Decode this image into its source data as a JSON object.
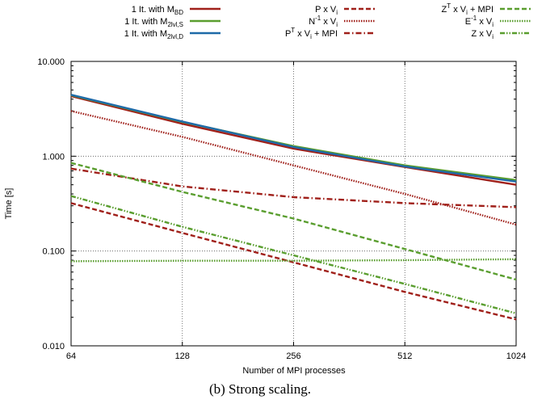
{
  "chart_data": {
    "type": "line",
    "caption": "(b) Strong scaling.",
    "xlabel": "Number of MPI processes",
    "ylabel": "Time [s]",
    "x": [
      64,
      128,
      256,
      512,
      1024
    ],
    "x_tick_labels": [
      "64",
      "128",
      "256",
      "512",
      "1024"
    ],
    "xscale": "log2",
    "yscale": "log10",
    "ylim": [
      0.01,
      10
    ],
    "y_ticks": [
      0.01,
      0.1,
      1,
      10
    ],
    "y_tick_labels": [
      "0.010",
      "0.100",
      "1.000",
      "10.000"
    ],
    "grid": "dotted, at major ticks",
    "legend_position": "top, above plot, three columns",
    "series": [
      {
        "name": "1 It. with M_BD",
        "legend": [
          "1 It. with M",
          "BD",
          ""
        ],
        "color": "#a0201a",
        "dash": "solid",
        "values": [
          4.3,
          2.2,
          1.2,
          0.77,
          0.5
        ]
      },
      {
        "name": "1 It. with M_2lvl,S",
        "legend": [
          "1 It. with M",
          "2lvl,S",
          ""
        ],
        "color": "#5a9e2f",
        "dash": "solid",
        "values": [
          4.4,
          2.3,
          1.28,
          0.8,
          0.56
        ]
      },
      {
        "name": "1 It. with M_2lvl,D",
        "legend": [
          "1 It. with M",
          "2lvl,D",
          ""
        ],
        "color": "#1e6aa8",
        "dash": "solid",
        "values": [
          4.45,
          2.32,
          1.25,
          0.78,
          0.54
        ]
      },
      {
        "name": "P x V_i",
        "legend": [
          "P x V",
          "i",
          ""
        ],
        "color": "#a0201a",
        "dash": "dashed",
        "values": [
          0.32,
          0.155,
          0.076,
          0.037,
          0.019
        ]
      },
      {
        "name": "N^-1 x V_i",
        "legend": [
          "N",
          "",
          "-1",
          " x V",
          "i"
        ],
        "color": "#a0201a",
        "dash": "dotted",
        "values": [
          3.0,
          1.6,
          0.8,
          0.4,
          0.19
        ]
      },
      {
        "name": "P^T x V_i + MPI",
        "legend": [
          "P",
          "",
          "T",
          " x V",
          "i",
          " + MPI"
        ],
        "color": "#a0201a",
        "dash": "dashdot",
        "values": [
          0.74,
          0.48,
          0.37,
          0.32,
          0.29
        ]
      },
      {
        "name": "Z^T x V_i + MPI",
        "legend": [
          "Z",
          "",
          "T",
          " x V",
          "i",
          " + MPI"
        ],
        "color": "#5a9e2f",
        "dash": "dashed",
        "values": [
          0.85,
          0.42,
          0.22,
          0.105,
          0.05
        ]
      },
      {
        "name": "E^-1 x V_i",
        "legend": [
          "E",
          "",
          "-1",
          " x V",
          "i"
        ],
        "color": "#5a9e2f",
        "dash": "dotted",
        "values": [
          0.078,
          0.079,
          0.079,
          0.08,
          0.082
        ]
      },
      {
        "name": "Z x V_i",
        "legend": [
          "Z x V",
          "i",
          ""
        ],
        "color": "#5a9e2f",
        "dash": "dashdotdot",
        "values": [
          0.38,
          0.18,
          0.09,
          0.045,
          0.022
        ]
      }
    ]
  }
}
